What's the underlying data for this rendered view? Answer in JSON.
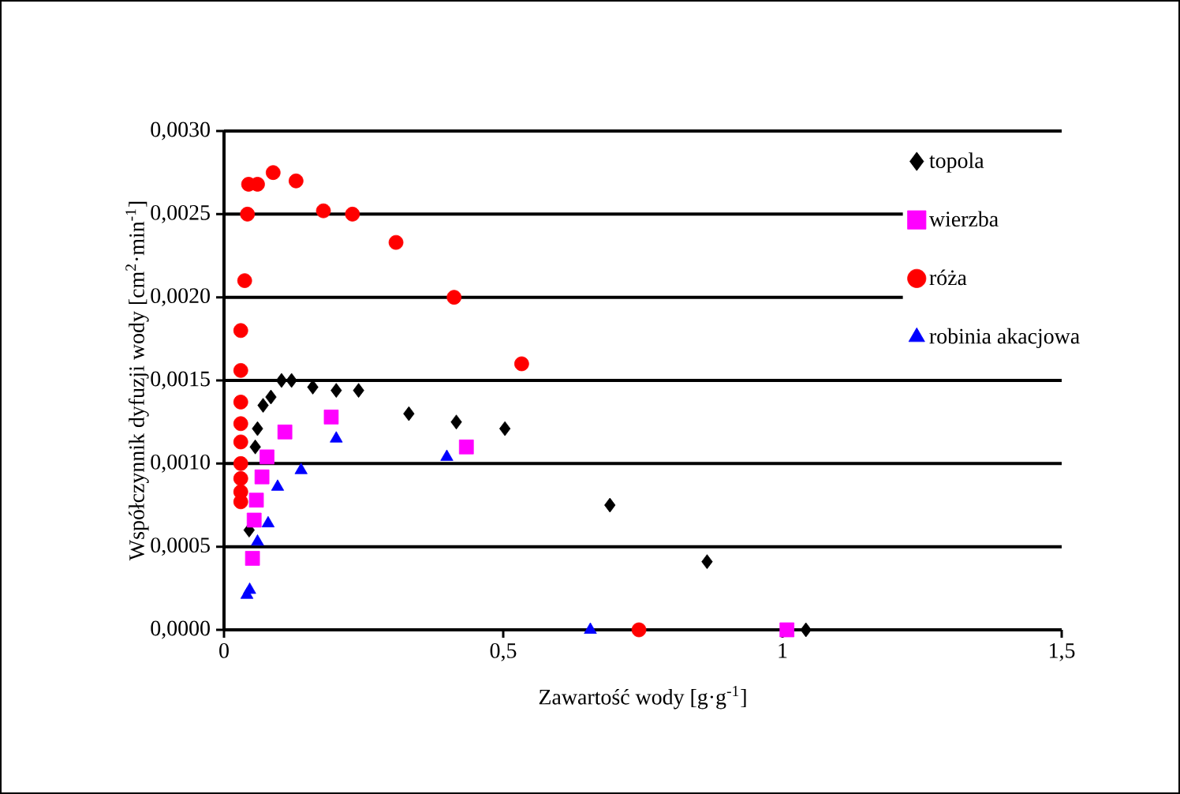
{
  "chart_data": {
    "type": "scatter",
    "xlabel": "Zawartość wody [g·g$^{-1}$]",
    "ylabel": "Współczynnik dyfuzji wody  [cm$^{2}$·min$^{-1}$]",
    "xlim": [
      0,
      1.5
    ],
    "xticks": [
      0,
      {
        "value": 0.5,
        "label": "0,5"
      },
      1,
      {
        "value": 1.5,
        "label": "1,5"
      }
    ],
    "ylim": [
      0,
      0.003
    ],
    "yticks": [
      {
        "value": 0,
        "label": "0,0000"
      },
      {
        "value": 0.0005,
        "label": "0,0005"
      },
      {
        "value": 0.001,
        "label": "0,0010"
      },
      {
        "value": 0.0015,
        "label": "0,0015"
      },
      {
        "value": 0.002,
        "label": "0,0020"
      },
      {
        "value": 0.0025,
        "label": "0,0025"
      },
      {
        "value": 0.003,
        "label": "0,0030"
      }
    ],
    "grid": "y",
    "legend": "right",
    "series": [
      {
        "name": "topola",
        "color": "#000000",
        "marker": "diamond",
        "x": [
          0.045,
          0.056,
          0.06,
          0.07,
          0.084,
          0.103,
          0.121,
          0.159,
          0.201,
          0.241,
          0.331,
          0.416,
          0.503,
          0.691,
          0.865,
          1.042
        ],
        "values": [
          0.0006,
          0.0011,
          0.00121,
          0.00135,
          0.0014,
          0.0015,
          0.0015,
          0.00146,
          0.00144,
          0.00144,
          0.0013,
          0.00125,
          0.00121,
          0.00075,
          0.00041,
          0
        ]
      },
      {
        "name": "wierzba",
        "color": "#ff00ff",
        "marker": "square",
        "x": [
          0.051,
          0.054,
          0.058,
          0.068,
          0.077,
          0.109,
          0.192,
          0.434,
          1.008
        ],
        "values": [
          0.00043,
          0.00066,
          0.00078,
          0.00092,
          0.00104,
          0.00119,
          0.00128,
          0.0011,
          0
        ]
      },
      {
        "name": "róża",
        "color": "#ff0000",
        "marker": "circle",
        "x": [
          0.03,
          0.03,
          0.03,
          0.03,
          0.03,
          0.03,
          0.03,
          0.03,
          0.03,
          0.037,
          0.042,
          0.044,
          0.06,
          0.088,
          0.129,
          0.178,
          0.23,
          0.308,
          0.412,
          0.533,
          0.743
        ],
        "values": [
          0.00077,
          0.00083,
          0.00091,
          0.001,
          0.00113,
          0.00124,
          0.00137,
          0.00156,
          0.0018,
          0.0021,
          0.0025,
          0.00268,
          0.00268,
          0.00275,
          0.0027,
          0.00252,
          0.0025,
          0.00233,
          0.002,
          0.0016,
          0
        ]
      },
      {
        "name": "robinia akacjowa",
        "color": "#0000ff",
        "marker": "triangle",
        "x": [
          0.041,
          0.046,
          0.06,
          0.079,
          0.096,
          0.138,
          0.201,
          0.399,
          0.656
        ],
        "values": [
          0.00021,
          0.00024,
          0.00053,
          0.00064,
          0.00086,
          0.00096,
          0.00115,
          0.00104,
          0
        ]
      }
    ]
  }
}
